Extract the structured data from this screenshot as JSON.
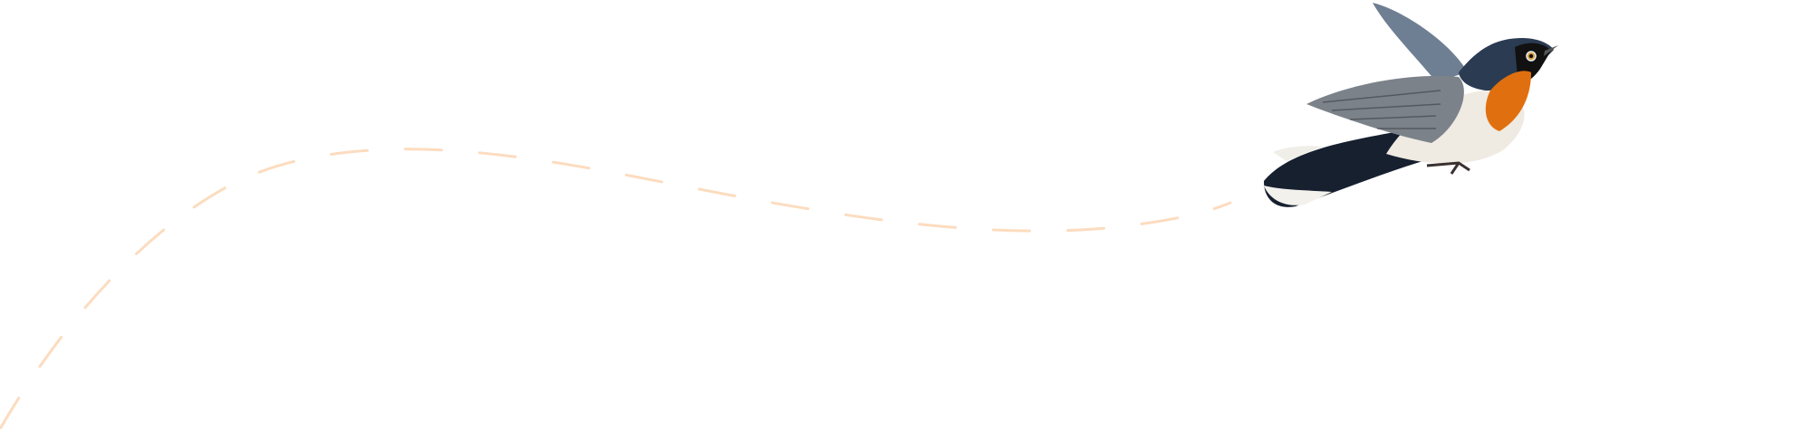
{
  "illustration": {
    "subject": "bird-in-flight",
    "colors": {
      "path": "#fcdcbf",
      "bird_back": "#2a3b52",
      "bird_throat": "#e0700f",
      "bird_belly": "#efeae2",
      "bird_wing": "#7c828a"
    }
  }
}
